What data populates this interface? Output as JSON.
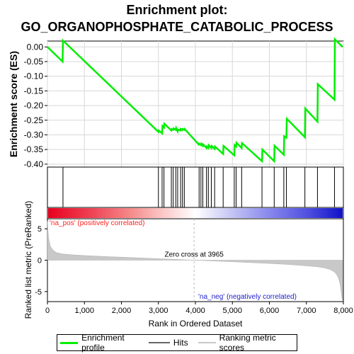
{
  "title_line1": "Enrichment plot:",
  "title_line2": "GO_ORGANOPHOSPHATE_CATABOLIC_PROCESS",
  "colors": {
    "enrichment_line": "#00ee00",
    "hits": "#000000",
    "metric_fill": "#c8c8c8",
    "zero_cross_line": "#bbbbbb",
    "pos_label": "#ff2020",
    "neg_label": "#2020cc",
    "grid": "#d8d8d8"
  },
  "legend": {
    "enrichment_profile": "Enrichment profile",
    "hits": "Hits",
    "ranking_metric_scores": "Ranking metric scores"
  },
  "chart_data": {
    "type": "line",
    "x_range": [
      0,
      8000
    ],
    "x_ticks": [
      0,
      1000,
      2000,
      3000,
      4000,
      5000,
      6000,
      7000,
      8000
    ],
    "x_tick_labels": [
      "0",
      "1,000",
      "2,000",
      "3,000",
      "4,000",
      "5,000",
      "6,000",
      "7,000",
      "8,000"
    ],
    "xlabel": "Rank in Ordered Dataset",
    "top_panel": {
      "ylabel": "Enrichment score (ES)",
      "ylim": [
        -0.41,
        0.02
      ],
      "y_ticks": [
        0.0,
        -0.05,
        -0.1,
        -0.15,
        -0.2,
        -0.25,
        -0.3,
        -0.35,
        -0.4
      ],
      "y_tick_labels": [
        "0.00",
        "-0.05",
        "-0.10",
        "-0.15",
        "-0.20",
        "-0.25",
        "-0.30",
        "-0.35",
        "-0.40"
      ],
      "grid": true,
      "series": [
        {
          "x": [
            0,
            410,
            420,
            3000,
            3010,
            3100,
            3110,
            3150,
            3160,
            3350,
            3360,
            3400,
            3410,
            3470,
            3480,
            3520,
            3530,
            3590,
            3600,
            3640,
            3650,
            3700,
            3710,
            4090,
            4100,
            4150,
            4160,
            4200,
            4210,
            4300,
            4310,
            4350,
            4360,
            4430,
            4440,
            4520,
            4530,
            4750,
            4760,
            5050,
            5060,
            5100,
            5110,
            5250,
            5260,
            5800,
            5810,
            6130,
            6140,
            6390,
            6400,
            6460,
            6470,
            6960,
            6970,
            7300,
            7310,
            7760,
            7770,
            7980
          ],
          "y": [
            0.0,
            -0.05,
            0.022,
            -0.29,
            -0.285,
            -0.295,
            -0.27,
            -0.275,
            -0.262,
            -0.285,
            -0.28,
            -0.283,
            -0.278,
            -0.283,
            -0.277,
            -0.288,
            -0.282,
            -0.285,
            -0.28,
            -0.284,
            -0.28,
            -0.283,
            -0.28,
            -0.333,
            -0.33,
            -0.335,
            -0.33,
            -0.337,
            -0.333,
            -0.345,
            -0.34,
            -0.345,
            -0.335,
            -0.345,
            -0.338,
            -0.348,
            -0.34,
            -0.365,
            -0.338,
            -0.37,
            -0.335,
            -0.34,
            -0.327,
            -0.345,
            -0.328,
            -0.39,
            -0.35,
            -0.39,
            -0.337,
            -0.368,
            -0.305,
            -0.31,
            -0.245,
            -0.308,
            -0.21,
            -0.255,
            -0.127,
            -0.18,
            0.026,
            0.0
          ]
        }
      ]
    },
    "hits_panel": {
      "hit_positions": [
        420,
        3000,
        3100,
        3150,
        3350,
        3400,
        3470,
        3520,
        3600,
        3650,
        3700,
        4100,
        4150,
        4200,
        4300,
        4350,
        4430,
        4520,
        4750,
        5050,
        5100,
        5250,
        5800,
        6130,
        6390,
        6460,
        6960,
        7300,
        7760
      ]
    },
    "ranked_metric_panel": {
      "ylabel": "Ranked list metric (PreRanked)",
      "ylim": [
        -6.6,
        6.6
      ],
      "y_ticks": [
        5,
        0,
        -5
      ],
      "y_tick_labels": [
        "5",
        "0",
        "-5"
      ],
      "zero_cross_rank": 3965,
      "zero_cross_label": "Zero cross at 3965",
      "pos_label": "'na_pos' (positively correlated)",
      "neg_label": "'na_neg' (negatively correlated)",
      "metric_curve": {
        "rank": [
          0,
          30,
          80,
          150,
          250,
          400,
          700,
          1000,
          1500,
          2000,
          2500,
          3000,
          3500,
          3965,
          4500,
          5000,
          5500,
          6000,
          6500,
          7000,
          7300,
          7500,
          7650,
          7750,
          7820,
          7870,
          7910,
          7940,
          7960,
          7980
        ],
        "value": [
          6.2,
          3.5,
          2.2,
          1.6,
          1.2,
          1.0,
          0.85,
          0.75,
          0.6,
          0.48,
          0.36,
          0.24,
          0.12,
          0.0,
          -0.12,
          -0.25,
          -0.38,
          -0.52,
          -0.68,
          -0.9,
          -1.05,
          -1.25,
          -1.5,
          -1.85,
          -2.3,
          -2.9,
          -3.8,
          -5.0,
          -6.0,
          -6.4
        ]
      }
    }
  }
}
